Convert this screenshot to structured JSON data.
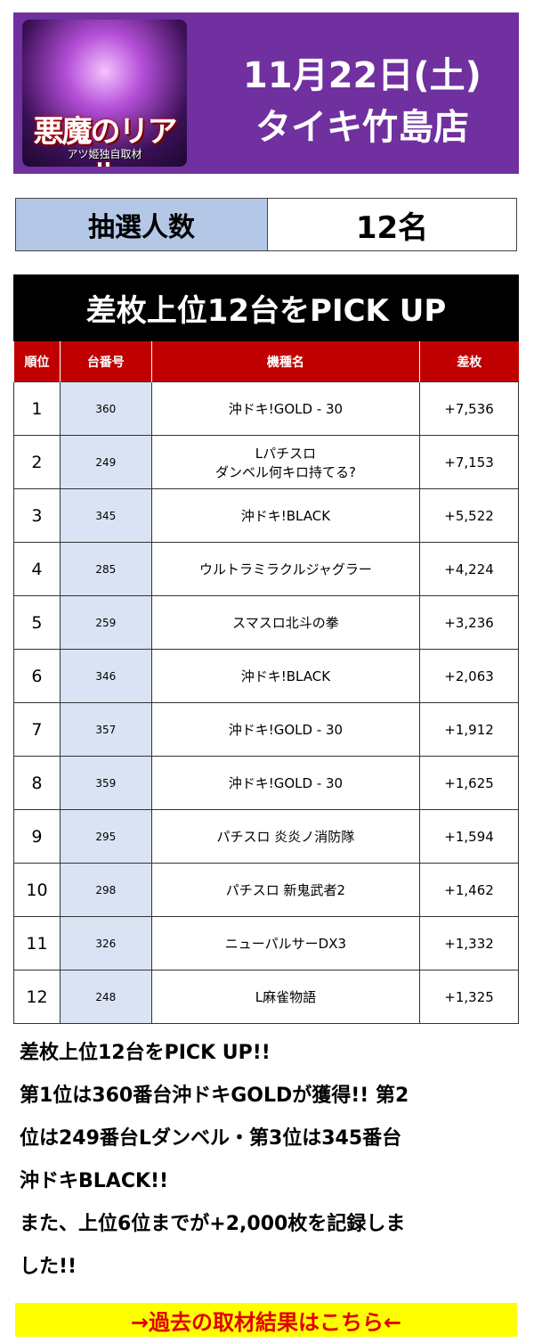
{
  "header": {
    "logo_title": "悪魔のリアル",
    "logo_subtitle": "アツ姫独自取材",
    "date": "11月22日(土)",
    "store": "タイキ竹島店"
  },
  "lottery": {
    "label": "抽選人数",
    "value": "12名"
  },
  "table": {
    "title": "差枚上位12台をPICK UP",
    "headers": [
      "順位",
      "台番号",
      "機種名",
      "差枚"
    ],
    "rows": [
      [
        "1",
        "360",
        "沖ドキ!GOLD - 30",
        "+7,536"
      ],
      [
        "2",
        "249",
        "Lパチスロ\nダンベル何キロ持てる?",
        "+7,153"
      ],
      [
        "3",
        "345",
        "沖ドキ!BLACK",
        "+5,522"
      ],
      [
        "4",
        "285",
        "ウルトラミラクルジャグラー",
        "+4,224"
      ],
      [
        "5",
        "259",
        "スマスロ北斗の拳",
        "+3,236"
      ],
      [
        "6",
        "346",
        "沖ドキ!BLACK",
        "+2,063"
      ],
      [
        "7",
        "357",
        "沖ドキ!GOLD - 30",
        "+1,912"
      ],
      [
        "8",
        "359",
        "沖ドキ!GOLD - 30",
        "+1,625"
      ],
      [
        "9",
        "295",
        "パチスロ 炎炎ノ消防隊",
        "+1,594"
      ],
      [
        "10",
        "298",
        "パチスロ 新鬼武者2",
        "+1,462"
      ],
      [
        "11",
        "326",
        "ニューパルサーDX3",
        "+1,332"
      ],
      [
        "12",
        "248",
        "L麻雀物語",
        "+1,325"
      ]
    ]
  },
  "summary": [
    "差枚上位12台をPICK UP!!",
    "第1位は360番台沖ドキGOLDが獲得!! 第2",
    "位は249番台Lダンベル・第3位は345番台",
    "沖ドキBLACK!!",
    "また、上位6位までが+2,000枚を記録しま",
    "した!!"
  ],
  "link": "→過去の取材結果はこちら←"
}
